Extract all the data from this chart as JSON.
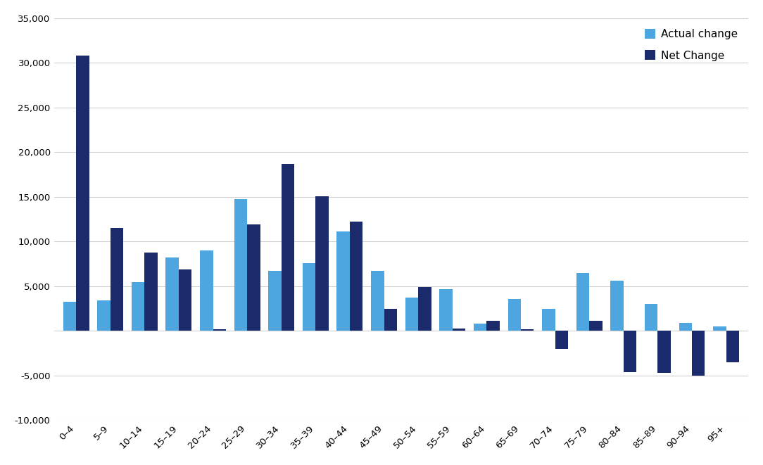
{
  "categories": [
    "0–4",
    "5–9",
    "10–14",
    "15–19",
    "20–24",
    "25–29",
    "30–34",
    "35–39",
    "40–44",
    "45–49",
    "50–54",
    "55–59",
    "60–64",
    "65–69",
    "70–74",
    "75–79",
    "80–84",
    "85–89",
    "90–94",
    "95+"
  ],
  "actual_change": [
    3300,
    3400,
    5500,
    8200,
    9000,
    14723,
    6700,
    7600,
    11100,
    6700,
    3700,
    4700,
    800,
    3600,
    2500,
    6500,
    5600,
    3000,
    900,
    500
  ],
  "net_change": [
    30832,
    11500,
    8800,
    6900,
    200,
    11900,
    18700,
    15100,
    12200,
    2500,
    4900,
    300,
    1100,
    200,
    -2000,
    1100,
    -4600,
    -4700,
    -5000,
    -3500
  ],
  "actual_color": "#4da6e0",
  "net_color": "#1b2a6b",
  "ylim_min": -10000,
  "ylim_max": 35000,
  "ytick_step": 5000,
  "background_color": "#ffffff",
  "legend_actual": "Actual change",
  "legend_net": "Net Change",
  "bar_width": 0.38,
  "legend_fontsize": 11,
  "tick_fontsize": 9.5
}
